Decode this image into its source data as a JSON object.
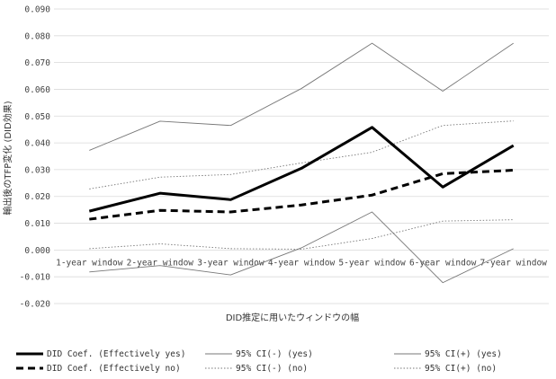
{
  "chart_data": {
    "type": "line",
    "title": "",
    "xlabel": "DID推定に用いたウィンドウの幅",
    "ylabel": "輸出後のTFP変化 (DID効果)",
    "ylim": [
      -0.02,
      0.09
    ],
    "yticks": [
      -0.02,
      -0.01,
      0.0,
      0.01,
      0.02,
      0.03,
      0.04,
      0.05,
      0.06,
      0.07,
      0.08,
      0.09
    ],
    "ytick_labels": [
      "-0.020",
      "-0.010",
      "0.000",
      "0.010",
      "0.020",
      "0.030",
      "0.040",
      "0.050",
      "0.060",
      "0.070",
      "0.080",
      "0.090"
    ],
    "categories": [
      "1-year window",
      "2-year window",
      "3-year window",
      "4-year window",
      "5-year window",
      "6-year window",
      "7-year window"
    ],
    "grid": "horizontal",
    "legend_position": "bottom",
    "series": [
      {
        "name": "DID Coef. (Effectively yes)",
        "values": [
          0.0145,
          0.0212,
          0.0188,
          0.0305,
          0.0458,
          0.0235,
          0.039
        ],
        "color": "#000000",
        "style": "solid",
        "width": 3
      },
      {
        "name": "95% CI(-) (yes)",
        "values": [
          -0.0082,
          -0.0058,
          -0.0093,
          0.0008,
          0.0142,
          -0.0122,
          0.0005
        ],
        "color": "#777777",
        "style": "solid",
        "width": 0.9
      },
      {
        "name": "95% CI(+) (yes)",
        "values": [
          0.0372,
          0.0481,
          0.0465,
          0.0603,
          0.0772,
          0.0593,
          0.0772
        ],
        "color": "#777777",
        "style": "solid",
        "width": 0.9
      },
      {
        "name": "DID Coef. (Effectively no)",
        "values": [
          0.0115,
          0.0148,
          0.0142,
          0.0168,
          0.0205,
          0.0285,
          0.0298
        ],
        "color": "#000000",
        "style": "dashed",
        "width": 3
      },
      {
        "name": "95% CI(-) (no)",
        "values": [
          0.0005,
          0.0023,
          0.0005,
          0.0003,
          0.0043,
          0.0108,
          0.0113
        ],
        "color": "#777777",
        "style": "dotted",
        "width": 0.9
      },
      {
        "name": "95% CI(+) (no)",
        "values": [
          0.0228,
          0.0272,
          0.0282,
          0.0325,
          0.0365,
          0.0465,
          0.0482
        ],
        "color": "#777777",
        "style": "dotted",
        "width": 0.9
      }
    ]
  }
}
